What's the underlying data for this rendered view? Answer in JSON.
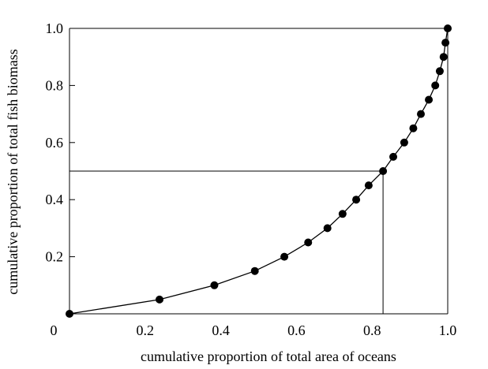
{
  "chart_data": {
    "type": "line",
    "title": "",
    "xlabel": "cumulative proportion of total area of oceans",
    "ylabel": "cumulative proportion of total fish biomass",
    "xlim": [
      0,
      1
    ],
    "ylim": [
      0,
      1
    ],
    "x_ticks": [
      "0",
      "0.2",
      "0.4",
      "0.6",
      "0.8",
      "1.0"
    ],
    "x_tick_values": [
      0,
      0.2,
      0.4,
      0.6,
      0.8,
      1.0
    ],
    "y_ticks": [
      "0.2",
      "0.4",
      "0.6",
      "0.8",
      "1.0"
    ],
    "y_tick_values": [
      0.2,
      0.4,
      0.6,
      0.8,
      1.0
    ],
    "grid": false,
    "marker": "filled-circle",
    "line_color": "#000000",
    "series": [
      {
        "x": [
          0.0,
          0.238,
          0.383,
          0.49,
          0.568,
          0.631,
          0.682,
          0.722,
          0.758,
          0.791,
          0.829,
          0.856,
          0.885,
          0.909,
          0.929,
          0.95,
          0.967,
          0.979,
          0.989,
          0.994,
          1.0
        ],
        "y": [
          0.0,
          0.05,
          0.1,
          0.15,
          0.2,
          0.25,
          0.3,
          0.35,
          0.4,
          0.45,
          0.5,
          0.55,
          0.6,
          0.65,
          0.7,
          0.75,
          0.8,
          0.85,
          0.9,
          0.95,
          1.0
        ]
      }
    ],
    "reference_lines": [
      {
        "orientation": "horizontal",
        "value": 0.5,
        "from": 0,
        "to": 0.829
      },
      {
        "orientation": "vertical",
        "value": 0.829,
        "from": 0,
        "to": 0.5
      },
      {
        "orientation": "horizontal",
        "value": 1.0,
        "from": 0,
        "to": 1.0
      },
      {
        "orientation": "vertical",
        "value": 1.0,
        "from": 0,
        "to": 1.0
      }
    ]
  }
}
